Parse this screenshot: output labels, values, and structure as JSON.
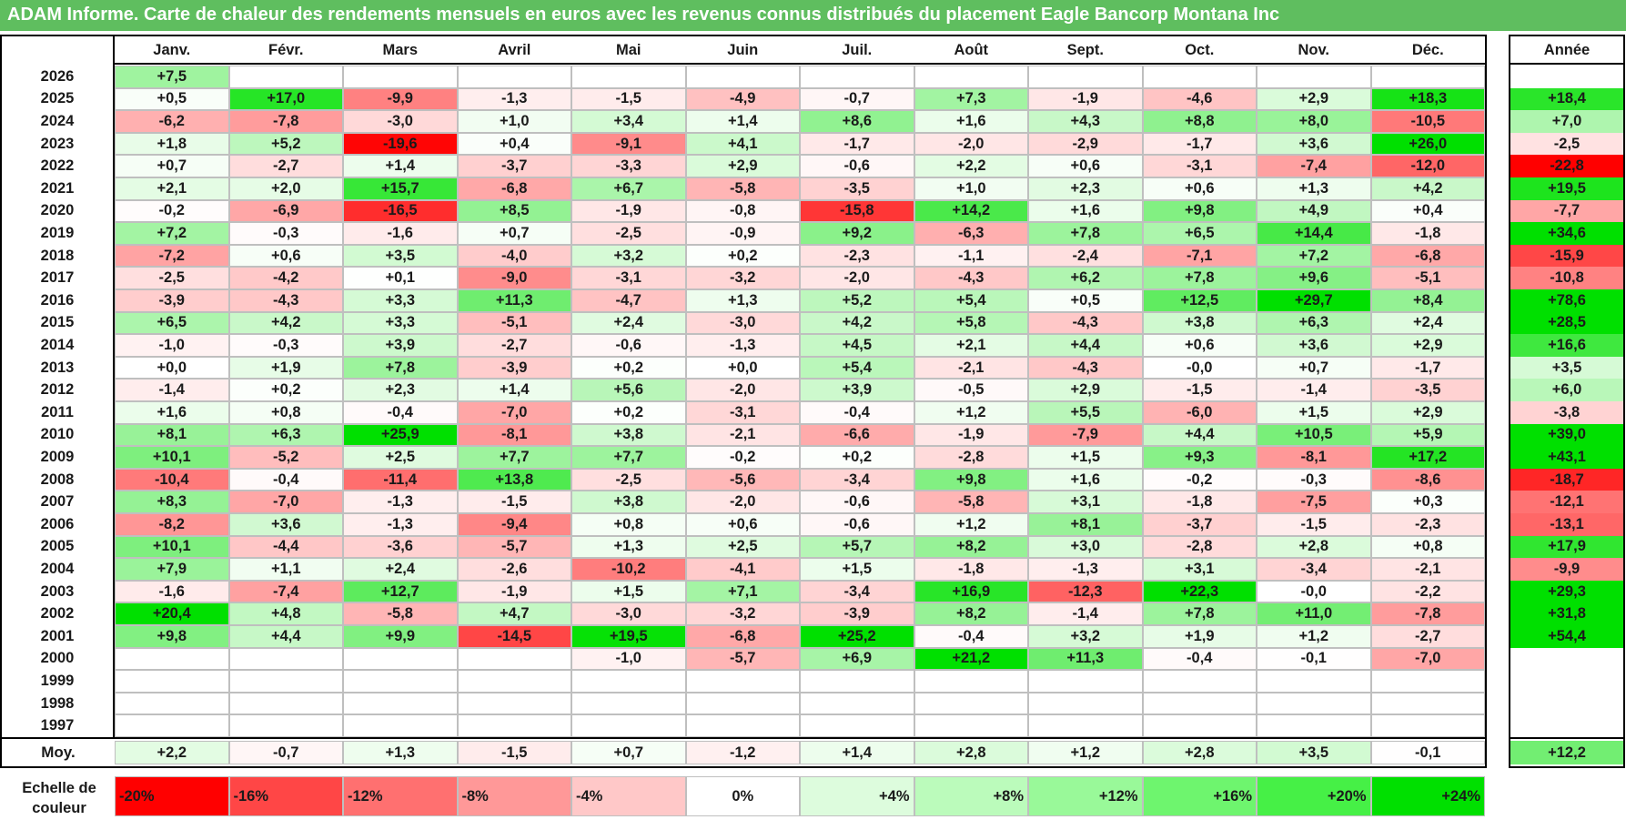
{
  "title": "ADAM Informe. Carte de chaleur des rendements mensuels en euros avec les revenus connus distribués du placement Eagle Bancorp Montana Inc",
  "chart_data": {
    "type": "heatmap",
    "months": [
      "Janv.",
      "Févr.",
      "Mars",
      "Avril",
      "Mai",
      "Juin",
      "Juil.",
      "Août",
      "Sept.",
      "Oct.",
      "Nov.",
      "Déc."
    ],
    "annual_label": "Année",
    "rows": [
      {
        "year": "2026",
        "values": [
          "+7,5",
          "",
          "",
          "",
          "",
          "",
          "",
          "",
          "",
          "",
          "",
          ""
        ],
        "annual": ""
      },
      {
        "year": "2025",
        "values": [
          "+0,5",
          "+17,0",
          "-9,9",
          "-1,3",
          "-1,5",
          "-4,9",
          "-0,7",
          "+7,3",
          "-1,9",
          "-4,6",
          "+2,9",
          "+18,3"
        ],
        "annual": "+18,4"
      },
      {
        "year": "2024",
        "values": [
          "-6,2",
          "-7,8",
          "-3,0",
          "+1,0",
          "+3,4",
          "+1,4",
          "+8,6",
          "+1,6",
          "+4,3",
          "+8,8",
          "+8,0",
          "-10,5"
        ],
        "annual": "+7,0"
      },
      {
        "year": "2023",
        "values": [
          "+1,8",
          "+5,2",
          "-19,6",
          "+0,4",
          "-9,1",
          "+4,1",
          "-1,7",
          "-2,0",
          "-2,9",
          "-1,7",
          "+3,6",
          "+26,0"
        ],
        "annual": "-2,5"
      },
      {
        "year": "2022",
        "values": [
          "+0,7",
          "-2,7",
          "+1,4",
          "-3,7",
          "-3,3",
          "+2,9",
          "-0,6",
          "+2,2",
          "+0,6",
          "-3,1",
          "-7,4",
          "-12,0"
        ],
        "annual": "-22,8"
      },
      {
        "year": "2021",
        "values": [
          "+2,1",
          "+2,0",
          "+15,7",
          "-6,8",
          "+6,7",
          "-5,8",
          "-3,5",
          "+1,0",
          "+2,3",
          "+0,6",
          "+1,3",
          "+4,2"
        ],
        "annual": "+19,5"
      },
      {
        "year": "2020",
        "values": [
          "-0,2",
          "-6,9",
          "-16,5",
          "+8,5",
          "-1,9",
          "-0,8",
          "-15,8",
          "+14,2",
          "+1,6",
          "+9,8",
          "+4,9",
          "+0,4"
        ],
        "annual": "-7,7"
      },
      {
        "year": "2019",
        "values": [
          "+7,2",
          "-0,3",
          "-1,6",
          "+0,7",
          "-2,5",
          "-0,9",
          "+9,2",
          "-6,3",
          "+7,8",
          "+6,5",
          "+14,4",
          "-1,8"
        ],
        "annual": "+34,6"
      },
      {
        "year": "2018",
        "values": [
          "-7,2",
          "+0,6",
          "+3,5",
          "-4,0",
          "+3,2",
          "+0,2",
          "-2,3",
          "-1,1",
          "-2,4",
          "-7,1",
          "+7,2",
          "-6,8"
        ],
        "annual": "-15,9"
      },
      {
        "year": "2017",
        "values": [
          "-2,5",
          "-4,2",
          "+0,1",
          "-9,0",
          "-3,1",
          "-3,2",
          "-2,0",
          "-4,3",
          "+6,2",
          "+7,8",
          "+9,6",
          "-5,1"
        ],
        "annual": "-10,8"
      },
      {
        "year": "2016",
        "values": [
          "-3,9",
          "-4,3",
          "+3,3",
          "+11,3",
          "-4,7",
          "+1,3",
          "+5,2",
          "+5,4",
          "+0,5",
          "+12,5",
          "+29,7",
          "+8,4"
        ],
        "annual": "+78,6"
      },
      {
        "year": "2015",
        "values": [
          "+6,5",
          "+4,2",
          "+3,3",
          "-5,1",
          "+2,4",
          "-3,0",
          "+4,2",
          "+5,8",
          "-4,3",
          "+3,8",
          "+6,3",
          "+2,4"
        ],
        "annual": "+28,5"
      },
      {
        "year": "2014",
        "values": [
          "-1,0",
          "-0,3",
          "+3,9",
          "-2,7",
          "-0,6",
          "-1,3",
          "+4,5",
          "+2,1",
          "+4,4",
          "+0,6",
          "+3,6",
          "+2,9"
        ],
        "annual": "+16,6"
      },
      {
        "year": "2013",
        "values": [
          "+0,0",
          "+1,9",
          "+7,8",
          "-3,9",
          "+0,2",
          "+0,0",
          "+5,4",
          "-2,1",
          "-4,3",
          "-0,0",
          "+0,7",
          "-1,7"
        ],
        "annual": "+3,5"
      },
      {
        "year": "2012",
        "values": [
          "-1,4",
          "+0,2",
          "+2,3",
          "+1,4",
          "+5,6",
          "-2,0",
          "+3,9",
          "-0,5",
          "+2,9",
          "-1,5",
          "-1,4",
          "-3,5"
        ],
        "annual": "+6,0"
      },
      {
        "year": "2011",
        "values": [
          "+1,6",
          "+0,8",
          "-0,4",
          "-7,0",
          "+0,2",
          "-3,1",
          "-0,4",
          "+1,2",
          "+5,5",
          "-6,0",
          "+1,5",
          "+2,9"
        ],
        "annual": "-3,8"
      },
      {
        "year": "2010",
        "values": [
          "+8,1",
          "+6,3",
          "+25,9",
          "-8,1",
          "+3,8",
          "-2,1",
          "-6,6",
          "-1,9",
          "-7,9",
          "+4,4",
          "+10,5",
          "+5,9"
        ],
        "annual": "+39,0"
      },
      {
        "year": "2009",
        "values": [
          "+10,1",
          "-5,2",
          "+2,5",
          "+7,7",
          "+7,7",
          "-0,2",
          "+0,2",
          "-2,8",
          "+1,5",
          "+9,3",
          "-8,1",
          "+17,2"
        ],
        "annual": "+43,1"
      },
      {
        "year": "2008",
        "values": [
          "-10,4",
          "-0,4",
          "-11,4",
          "+13,8",
          "-2,5",
          "-5,6",
          "-3,4",
          "+9,8",
          "+1,6",
          "-0,2",
          "-0,3",
          "-8,6"
        ],
        "annual": "-18,7"
      },
      {
        "year": "2007",
        "values": [
          "+8,3",
          "-7,0",
          "-1,3",
          "-1,5",
          "+3,8",
          "-2,0",
          "-0,6",
          "-5,8",
          "+3,1",
          "-1,8",
          "-7,5",
          "+0,3"
        ],
        "annual": "-12,1"
      },
      {
        "year": "2006",
        "values": [
          "-8,2",
          "+3,6",
          "-1,3",
          "-9,4",
          "+0,8",
          "+0,6",
          "-0,6",
          "+1,2",
          "+8,1",
          "-3,7",
          "-1,5",
          "-2,3"
        ],
        "annual": "-13,1"
      },
      {
        "year": "2005",
        "values": [
          "+10,1",
          "-4,4",
          "-3,6",
          "-5,7",
          "+1,3",
          "+2,5",
          "+5,7",
          "+8,2",
          "+3,0",
          "-2,8",
          "+2,8",
          "+0,8"
        ],
        "annual": "+17,9"
      },
      {
        "year": "2004",
        "values": [
          "+7,9",
          "+1,1",
          "+2,4",
          "-2,6",
          "-10,2",
          "-4,1",
          "+1,5",
          "-1,8",
          "-1,3",
          "+3,1",
          "-3,4",
          "-2,1"
        ],
        "annual": "-9,9"
      },
      {
        "year": "2003",
        "values": [
          "-1,6",
          "-7,4",
          "+12,7",
          "-1,9",
          "+1,5",
          "+7,1",
          "-3,4",
          "+16,9",
          "-12,3",
          "+22,3",
          "-0,0",
          "-2,2"
        ],
        "annual": "+29,3"
      },
      {
        "year": "2002",
        "values": [
          "+20,4",
          "+4,8",
          "-5,8",
          "+4,7",
          "-3,0",
          "-3,2",
          "-3,9",
          "+8,2",
          "-1,4",
          "+7,8",
          "+11,0",
          "-7,8"
        ],
        "annual": "+31,8"
      },
      {
        "year": "2001",
        "values": [
          "+9,8",
          "+4,4",
          "+9,9",
          "-14,5",
          "+19,5",
          "-6,8",
          "+25,2",
          "-0,4",
          "+3,2",
          "+1,9",
          "+1,2",
          "-2,7"
        ],
        "annual": "+54,4"
      },
      {
        "year": "2000",
        "values": [
          "",
          "",
          "",
          "",
          "-1,0",
          "-5,7",
          "+6,9",
          "+21,2",
          "+11,3",
          "-0,4",
          "-0,1",
          "-7,0"
        ],
        "annual": ""
      },
      {
        "year": "1999",
        "values": [
          "",
          "",
          "",
          "",
          "",
          "",
          "",
          "",
          "",
          "",
          "",
          ""
        ],
        "annual": ""
      },
      {
        "year": "1998",
        "values": [
          "",
          "",
          "",
          "",
          "",
          "",
          "",
          "",
          "",
          "",
          "",
          ""
        ],
        "annual": ""
      },
      {
        "year": "1997",
        "values": [
          "",
          "",
          "",
          "",
          "",
          "",
          "",
          "",
          "",
          "",
          "",
          ""
        ],
        "annual": ""
      }
    ],
    "average": {
      "label": "Moy.",
      "values": [
        "+2,2",
        "-0,7",
        "+1,3",
        "-1,5",
        "+0,7",
        "-1,2",
        "+1,4",
        "+2,8",
        "+1,2",
        "+2,8",
        "+3,5",
        "-0,1"
      ],
      "annual": "+12,2"
    },
    "color_scale": {
      "label_line1": "Echelle de",
      "label_line2": "couleur",
      "steps": [
        "-20%",
        "-16%",
        "-12%",
        "-8%",
        "-4%",
        "0%",
        "+4%",
        "+8%",
        "+12%",
        "+16%",
        "+20%",
        "+24%"
      ],
      "colors": [
        "#ff0000",
        "#ff4646",
        "#ff7070",
        "#ff9898",
        "#ffc8c8",
        "#ffffff",
        "#ddfcdd",
        "#bbfbbb",
        "#99f999",
        "#6ef56e",
        "#46f046",
        "#00e000"
      ]
    }
  }
}
